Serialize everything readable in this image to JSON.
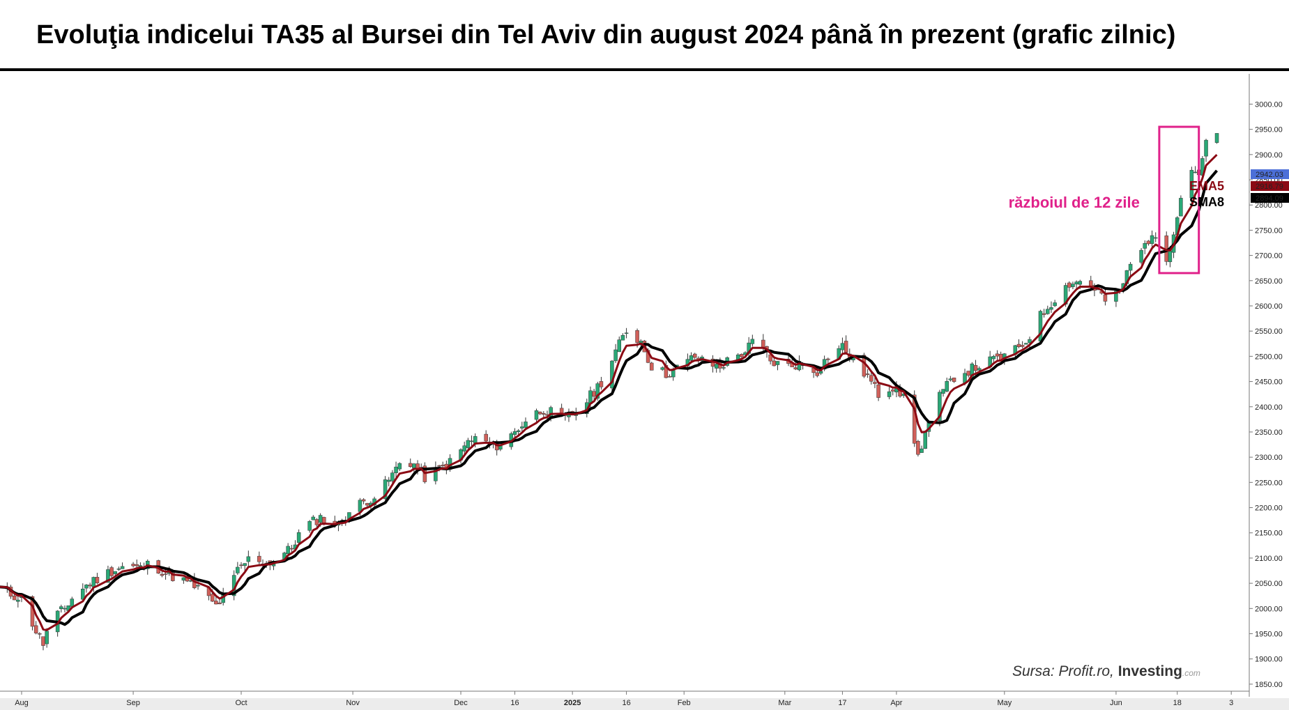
{
  "title": "Evoluţia indicelui TA35 al Bursei din Tel Aviv din august 2024 până în prezent (grafic zilnic)",
  "colors": {
    "up": "#2aa876",
    "down": "#d0605a",
    "ema": "#8b0a14",
    "sma": "#000000",
    "box": "#e0218a",
    "price_tag": "#4c6fd8"
  },
  "chart_data": {
    "type": "candlestick",
    "x_ticks": [
      {
        "label": "Aug",
        "date": "2024-08-01"
      },
      {
        "label": "Sep",
        "date": "2024-09-01"
      },
      {
        "label": "Oct",
        "date": "2024-10-01"
      },
      {
        "label": "Nov",
        "date": "2024-11-01"
      },
      {
        "label": "Dec",
        "date": "2024-12-01"
      },
      {
        "label": "16",
        "date": "2024-12-16"
      },
      {
        "label": "2025",
        "date": "2025-01-01"
      },
      {
        "label": "16",
        "date": "2025-01-16"
      },
      {
        "label": "Feb",
        "date": "2025-02-01"
      },
      {
        "label": "Mar",
        "date": "2025-03-01"
      },
      {
        "label": "17",
        "date": "2025-03-17"
      },
      {
        "label": "Apr",
        "date": "2025-04-01"
      },
      {
        "label": "May",
        "date": "2025-05-01"
      },
      {
        "label": "Jun",
        "date": "2025-06-01"
      },
      {
        "label": "18",
        "date": "2025-06-18"
      },
      {
        "label": "3",
        "date": "2025-07-03"
      }
    ],
    "y_ticks": [
      "1850.00",
      "1900.00",
      "1950.00",
      "2000.00",
      "2050.00",
      "2100.00",
      "2150.00",
      "2200.00",
      "2250.00",
      "2300.00",
      "2350.00",
      "2400.00",
      "2450.00",
      "2500.00",
      "2550.00",
      "2600.00",
      "2650.00",
      "2700.00",
      "2750.00",
      "2800.00",
      "2850.00",
      "2900.00",
      "2950.00",
      "3000.00"
    ],
    "ylim": [
      1825,
      3060
    ],
    "series": [
      {
        "name": "EMA5",
        "period": 5,
        "kind": "ema"
      },
      {
        "name": "SMA8",
        "period": 8,
        "kind": "sma"
      }
    ],
    "path_points": [
      [
        "2024-07-25",
        2040
      ],
      [
        "2024-08-01",
        2020
      ],
      [
        "2024-08-05",
        1955
      ],
      [
        "2024-08-07",
        1930
      ],
      [
        "2024-08-09",
        1975
      ],
      [
        "2024-08-13",
        2000
      ],
      [
        "2024-08-16",
        2030
      ],
      [
        "2024-08-21",
        2055
      ],
      [
        "2024-08-26",
        2075
      ],
      [
        "2024-08-30",
        2085
      ],
      [
        "2024-09-03",
        2080
      ],
      [
        "2024-09-06",
        2090
      ],
      [
        "2024-09-10",
        2070
      ],
      [
        "2024-09-15",
        2055
      ],
      [
        "2024-09-19",
        2040
      ],
      [
        "2024-09-24",
        2005
      ],
      [
        "2024-09-27",
        2030
      ],
      [
        "2024-09-30",
        2075
      ],
      [
        "2024-10-04",
        2105
      ],
      [
        "2024-10-08",
        2090
      ],
      [
        "2024-10-11",
        2100
      ],
      [
        "2024-10-15",
        2120
      ],
      [
        "2024-10-18",
        2160
      ],
      [
        "2024-10-23",
        2180
      ],
      [
        "2024-10-28",
        2165
      ],
      [
        "2024-11-01",
        2200
      ],
      [
        "2024-11-05",
        2215
      ],
      [
        "2024-11-08",
        2225
      ],
      [
        "2024-11-12",
        2265
      ],
      [
        "2024-11-15",
        2300
      ],
      [
        "2024-11-18",
        2285
      ],
      [
        "2024-11-21",
        2260
      ],
      [
        "2024-11-26",
        2280
      ],
      [
        "2024-11-29",
        2295
      ],
      [
        "2024-12-03",
        2330
      ],
      [
        "2024-12-06",
        2340
      ],
      [
        "2024-12-10",
        2320
      ],
      [
        "2024-12-13",
        2330
      ],
      [
        "2024-12-16",
        2350
      ],
      [
        "2024-12-20",
        2380
      ],
      [
        "2024-12-24",
        2395
      ],
      [
        "2024-12-30",
        2375
      ],
      [
        "2025-01-03",
        2395
      ],
      [
        "2025-01-07",
        2430
      ],
      [
        "2025-01-10",
        2460
      ],
      [
        "2025-01-13",
        2510
      ],
      [
        "2025-01-16",
        2550
      ],
      [
        "2025-01-20",
        2530
      ],
      [
        "2025-01-23",
        2480
      ],
      [
        "2025-01-27",
        2465
      ],
      [
        "2025-01-31",
        2480
      ],
      [
        "2025-02-04",
        2500
      ],
      [
        "2025-02-07",
        2485
      ],
      [
        "2025-02-11",
        2480
      ],
      [
        "2025-02-14",
        2495
      ],
      [
        "2025-02-18",
        2510
      ],
      [
        "2025-02-21",
        2535
      ],
      [
        "2025-02-25",
        2490
      ],
      [
        "2025-03-01",
        2480
      ],
      [
        "2025-03-05",
        2485
      ],
      [
        "2025-03-10",
        2470
      ],
      [
        "2025-03-13",
        2500
      ],
      [
        "2025-03-17",
        2520
      ],
      [
        "2025-03-20",
        2490
      ],
      [
        "2025-03-24",
        2460
      ],
      [
        "2025-03-27",
        2425
      ],
      [
        "2025-04-01",
        2445
      ],
      [
        "2025-04-04",
        2400
      ],
      [
        "2025-04-07",
        2300
      ],
      [
        "2025-04-09",
        2350
      ],
      [
        "2025-04-13",
        2420
      ],
      [
        "2025-04-17",
        2460
      ],
      [
        "2025-04-22",
        2475
      ],
      [
        "2025-04-25",
        2485
      ],
      [
        "2025-04-29",
        2495
      ],
      [
        "2025-05-03",
        2505
      ],
      [
        "2025-05-07",
        2530
      ],
      [
        "2025-05-11",
        2580
      ],
      [
        "2025-05-15",
        2615
      ],
      [
        "2025-05-19",
        2645
      ],
      [
        "2025-05-23",
        2650
      ],
      [
        "2025-05-27",
        2630
      ],
      [
        "2025-05-30",
        2600
      ],
      [
        "2025-06-02",
        2630
      ],
      [
        "2025-06-05",
        2680
      ],
      [
        "2025-06-09",
        2720
      ],
      [
        "2025-06-11",
        2745
      ],
      [
        "2025-06-13",
        2705
      ],
      [
        "2025-06-15",
        2690
      ],
      [
        "2025-06-17",
        2750
      ],
      [
        "2025-06-19",
        2820
      ],
      [
        "2025-06-22",
        2870
      ],
      [
        "2025-06-24",
        2865
      ],
      [
        "2025-06-26",
        2920
      ],
      [
        "2025-06-29",
        2942
      ]
    ],
    "price_labels": [
      {
        "label": "2942.03",
        "value": 2942.03,
        "color": "#4c6fd8"
      },
      {
        "label": "2916.79",
        "value": 2916.79,
        "color": "#8b0a14"
      },
      {
        "label": "2894.09",
        "value": 2894.09,
        "color": "#000000"
      }
    ],
    "annotation": {
      "text": "războiul de 12 zile",
      "from": "2025-06-13",
      "to": "2025-06-24",
      "low": 2665,
      "high": 2955
    },
    "legend": [
      "EMA5",
      "SMA8"
    ]
  },
  "source": {
    "prefix": "Sursa: Profit.ro, ",
    "brand": "Investing",
    "suffix": ".com"
  }
}
